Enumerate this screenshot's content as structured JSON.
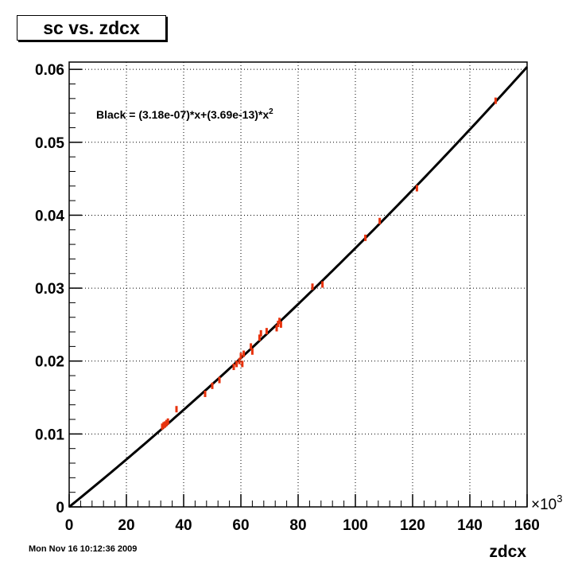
{
  "title": "sc vs. zdcx",
  "footer": {
    "timestamp": "Mon Nov 16 10:12:36 2009"
  },
  "colors": {
    "points": "#e8320c",
    "fit_line": "#000000",
    "grid": "#000000"
  },
  "chart_data": {
    "type": "scatter",
    "title": "sc vs. zdcx",
    "xlabel": "zdcx",
    "ylabel": "",
    "x_multiplier_label": "×10",
    "x_multiplier_exponent": "3",
    "xlim": [
      0,
      160
    ],
    "ylim": [
      0,
      0.061
    ],
    "grid": true,
    "x_ticks": [
      0,
      20,
      40,
      60,
      80,
      100,
      120,
      140,
      160
    ],
    "x_tick_labels": [
      "0",
      "20",
      "40",
      "60",
      "80",
      "100",
      "120",
      "140",
      "160"
    ],
    "y_ticks": [
      0,
      0.01,
      0.02,
      0.03,
      0.04,
      0.05,
      0.06
    ],
    "y_tick_labels": [
      "0",
      "0.01",
      "0.02",
      "0.03",
      "0.04",
      "0.05",
      "0.06"
    ],
    "fit_label": "Black = (3.18e-07)*x+(3.69e-13)*x",
    "fit_label_superscript": "2",
    "fit": {
      "a": 3.18e-07,
      "b": 3.69e-13
    },
    "points": [
      {
        "x": 32.5,
        "y": 0.011
      },
      {
        "x": 33.0,
        "y": 0.0112
      },
      {
        "x": 33.5,
        "y": 0.0113
      },
      {
        "x": 34.0,
        "y": 0.0115
      },
      {
        "x": 34.5,
        "y": 0.0117
      },
      {
        "x": 37.5,
        "y": 0.0134
      },
      {
        "x": 47.5,
        "y": 0.0155
      },
      {
        "x": 50.0,
        "y": 0.0166
      },
      {
        "x": 52.5,
        "y": 0.0174
      },
      {
        "x": 57.5,
        "y": 0.0192
      },
      {
        "x": 58.5,
        "y": 0.0196
      },
      {
        "x": 59.5,
        "y": 0.02
      },
      {
        "x": 60.0,
        "y": 0.0207
      },
      {
        "x": 60.5,
        "y": 0.0196
      },
      {
        "x": 61.0,
        "y": 0.021
      },
      {
        "x": 63.5,
        "y": 0.022
      },
      {
        "x": 64.0,
        "y": 0.0213
      },
      {
        "x": 66.5,
        "y": 0.0232
      },
      {
        "x": 67.0,
        "y": 0.0238
      },
      {
        "x": 69.0,
        "y": 0.0241
      },
      {
        "x": 72.5,
        "y": 0.0245
      },
      {
        "x": 73.0,
        "y": 0.0251
      },
      {
        "x": 73.5,
        "y": 0.0255
      },
      {
        "x": 74.0,
        "y": 0.025
      },
      {
        "x": 85.0,
        "y": 0.0302
      },
      {
        "x": 88.5,
        "y": 0.0305
      },
      {
        "x": 103.5,
        "y": 0.0369
      },
      {
        "x": 108.5,
        "y": 0.0392
      },
      {
        "x": 121.5,
        "y": 0.0437
      },
      {
        "x": 149.0,
        "y": 0.0557
      }
    ]
  }
}
